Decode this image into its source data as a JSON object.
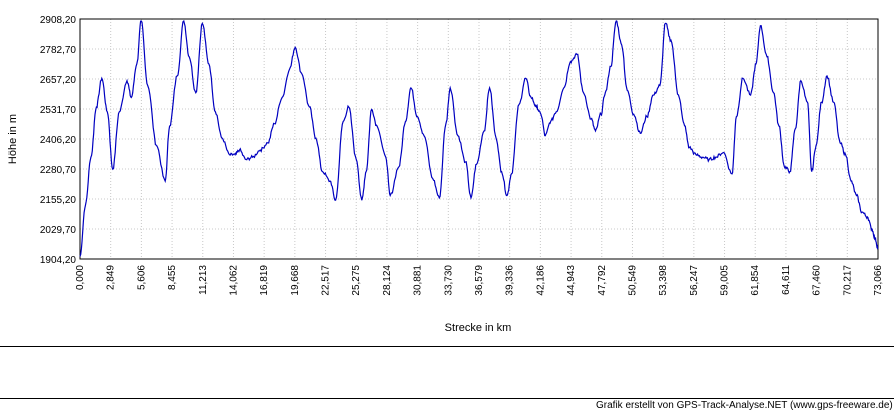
{
  "chart_data": {
    "type": "line",
    "title": "",
    "xlabel": "Strecke  in  km",
    "ylabel": "Höhe  in  m",
    "xlim": [
      0,
      73.066
    ],
    "ylim": [
      1904.2,
      2908.2
    ],
    "grid": true,
    "line_color": "#0000c0",
    "x_ticks": [
      "0,000",
      "2,849",
      "5,606",
      "8,455",
      "11,213",
      "14,062",
      "16,819",
      "19,668",
      "22,517",
      "25,275",
      "28,124",
      "30,881",
      "33,730",
      "36,579",
      "39,336",
      "42,186",
      "44,943",
      "47,792",
      "50,549",
      "53,398",
      "56,247",
      "59,005",
      "61,854",
      "64,611",
      "67,460",
      "70,217",
      "73,066"
    ],
    "y_ticks": [
      "2908,20",
      "2782,70",
      "2657,20",
      "2531,70",
      "2406,20",
      "2280,70",
      "2155,20",
      "2029,70",
      "1904,20"
    ],
    "series": [
      {
        "x": [
          0,
          0.5,
          1.0,
          1.5,
          2.0,
          2.5,
          3.0,
          3.6,
          4.3,
          4.7,
          5.2,
          5.6,
          6.2,
          7.0,
          7.8,
          8.2,
          8.9,
          9.5,
          10.0,
          10.6,
          11.2,
          11.8,
          12.4,
          13.0,
          13.7,
          14.2,
          14.6,
          15.2,
          15.8,
          16.5,
          17.2,
          17.8,
          18.5,
          19.2,
          19.7,
          20.3,
          21.0,
          21.6,
          22.2,
          22.9,
          23.4,
          24.1,
          24.6,
          25.3,
          25.8,
          26.2,
          26.7,
          27.2,
          28.0,
          28.4,
          29.2,
          29.8,
          30.3,
          30.9,
          31.5,
          32.3,
          32.9,
          33.5,
          33.9,
          34.6,
          35.3,
          35.8,
          36.3,
          37.0,
          37.5,
          38.1,
          38.6,
          39.1,
          39.5,
          40.2,
          40.8,
          41.3,
          41.8,
          42.2,
          42.6,
          43.1,
          43.6,
          44.3,
          44.9,
          45.5,
          46.1,
          46.8,
          47.2,
          47.7,
          48.1,
          48.6,
          49.1,
          49.6,
          50.1,
          50.7,
          51.3,
          51.9,
          52.5,
          53.1,
          53.6,
          54.1,
          54.8,
          55.3,
          55.8,
          56.4,
          57.0,
          57.6,
          58.2,
          58.9,
          59.7,
          60.1,
          60.7,
          61.4,
          61.9,
          62.3,
          62.9,
          63.5,
          64.0,
          64.5,
          65.0,
          65.5,
          66.0,
          66.6,
          67.0,
          67.4,
          67.9,
          68.4,
          69.0,
          69.6,
          70.1,
          70.6,
          71.1,
          71.6,
          72.1,
          72.5,
          72.8,
          73.066
        ],
        "y": [
          1915,
          2130,
          2330,
          2540,
          2660,
          2520,
          2280,
          2520,
          2650,
          2580,
          2720,
          2900,
          2630,
          2380,
          2230,
          2460,
          2670,
          2900,
          2750,
          2600,
          2890,
          2720,
          2520,
          2410,
          2340,
          2340,
          2360,
          2320,
          2330,
          2360,
          2390,
          2470,
          2580,
          2700,
          2790,
          2680,
          2540,
          2410,
          2270,
          2230,
          2150,
          2480,
          2540,
          2320,
          2150,
          2270,
          2530,
          2460,
          2330,
          2170,
          2290,
          2480,
          2620,
          2500,
          2420,
          2240,
          2160,
          2470,
          2620,
          2420,
          2310,
          2160,
          2300,
          2440,
          2620,
          2410,
          2270,
          2170,
          2260,
          2550,
          2660,
          2580,
          2540,
          2510,
          2420,
          2480,
          2520,
          2620,
          2730,
          2760,
          2600,
          2490,
          2440,
          2510,
          2600,
          2710,
          2900,
          2800,
          2610,
          2510,
          2430,
          2500,
          2590,
          2630,
          2890,
          2820,
          2590,
          2470,
          2370,
          2340,
          2330,
          2320,
          2330,
          2350,
          2260,
          2500,
          2660,
          2590,
          2720,
          2880,
          2750,
          2600,
          2460,
          2290,
          2270,
          2450,
          2650,
          2560,
          2270,
          2380,
          2560,
          2670,
          2560,
          2390,
          2340,
          2230,
          2170,
          2100,
          2080,
          2030,
          1990,
          1950
        ]
      }
    ],
    "credit": "Grafik erstellt von GPS-Track-Analyse.NET (www.gps-freeware.de)"
  }
}
